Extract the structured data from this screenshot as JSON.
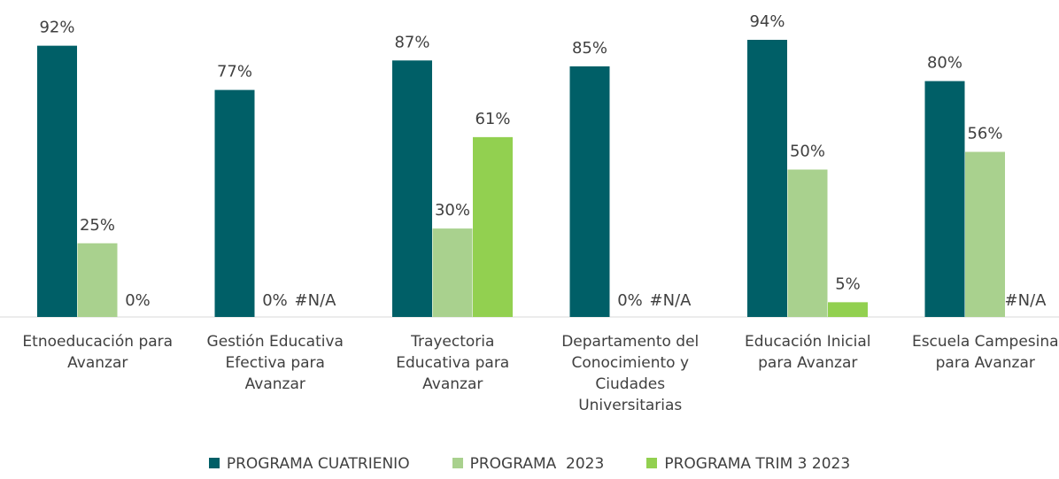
{
  "chart_data": {
    "type": "bar",
    "categories": [
      "Etnoeducación para Avanzar",
      "Gestión Educativa Efectiva para Avanzar",
      "Trayectoria Educativa para Avanzar",
      "Departamento del Conocimiento y Ciudades Universitarias",
      "Educación Inicial para Avanzar",
      "Escuela Campesina para Avanzar"
    ],
    "series": [
      {
        "name": "PROGRAMA CUATRIENIO",
        "color": "#005f67",
        "values": [
          92,
          77,
          87,
          85,
          94,
          80
        ],
        "value_labels": [
          "92%",
          "77%",
          "87%",
          "85%",
          "94%",
          "80%"
        ]
      },
      {
        "name": "PROGRAMA  2023",
        "color": "#a9d18e",
        "values": [
          25,
          0,
          30,
          0,
          50,
          56
        ],
        "value_labels": [
          "25%",
          "0%",
          "30%",
          "0%",
          "50%",
          "56%"
        ]
      },
      {
        "name": "PROGRAMA TRIM 3 2023",
        "color": "#92d050",
        "values": [
          0,
          null,
          61,
          null,
          5,
          null
        ],
        "value_labels": [
          "0%",
          "#N/A",
          "61%",
          "#N/A",
          "5%",
          "#N/A"
        ]
      }
    ],
    "ylim": [
      0,
      100
    ]
  }
}
